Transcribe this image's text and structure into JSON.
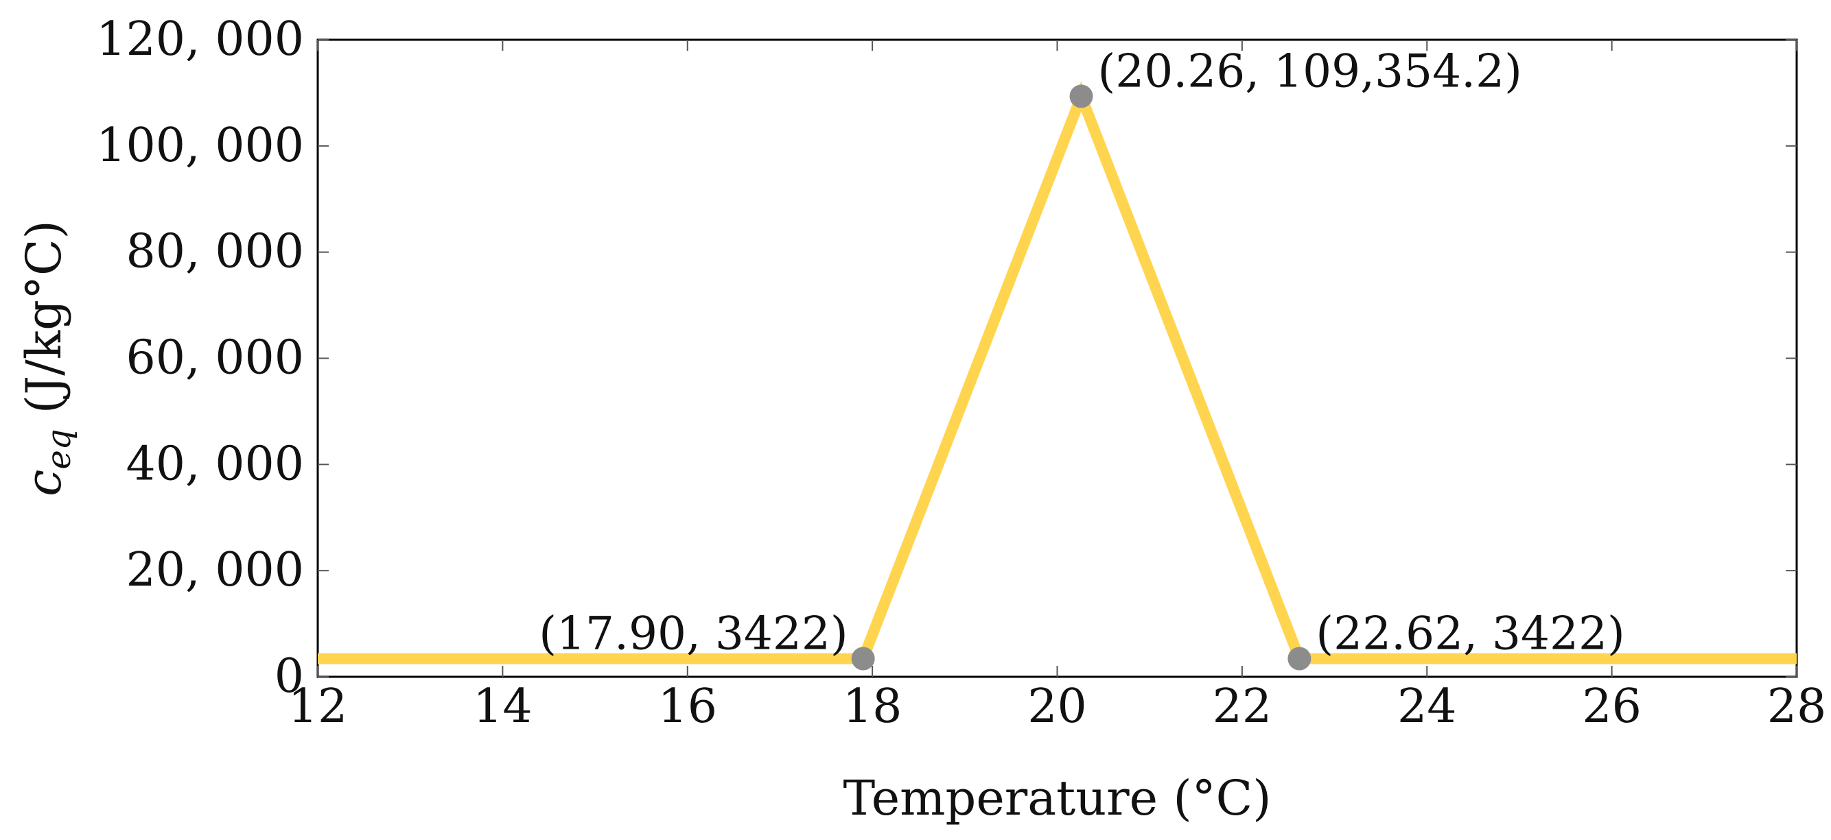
{
  "chart_data": {
    "type": "line",
    "title": "",
    "xlabel": "Temperature (°C)",
    "ylabel": {
      "symbol": "c",
      "subscript": "eq",
      "units": " (J/kg°C)"
    },
    "xlim": [
      12,
      28
    ],
    "ylim": [
      0,
      120000
    ],
    "xticks": [
      12,
      14,
      16,
      18,
      20,
      22,
      24,
      26,
      28
    ],
    "yticks": [
      0,
      20000,
      40000,
      60000,
      80000,
      100000,
      120000
    ],
    "ytick_labels": [
      "0",
      "20, 000",
      "40, 000",
      "60, 000",
      "80, 000",
      "100, 000",
      "120, 000"
    ],
    "series": [
      {
        "x": [
          12,
          17.9,
          20.26,
          22.62,
          28
        ],
        "y": [
          3422,
          3422,
          109354.2,
          3422,
          3422
        ],
        "color": "#FFD54F"
      }
    ],
    "markers": {
      "color": "#8C8C8C",
      "points": [
        {
          "x": 17.9,
          "y": 3422,
          "label": "(17.90, 3422)",
          "anchor": "end"
        },
        {
          "x": 20.26,
          "y": 109354.2,
          "label": "(20.26, 109,354.2)",
          "anchor": "start"
        },
        {
          "x": 22.62,
          "y": 3422,
          "label": "(22.62, 3422)",
          "anchor": "start"
        }
      ]
    },
    "grid": false
  }
}
